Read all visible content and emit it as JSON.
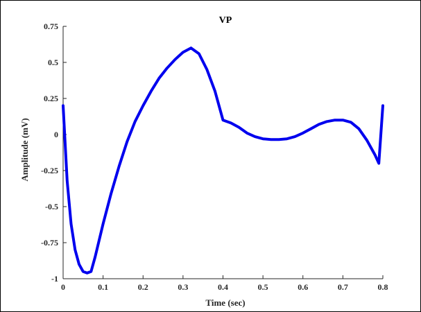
{
  "chart_data": {
    "type": "line",
    "title": "VP",
    "xlabel": "Time (sec)",
    "ylabel": "Amplitude (mV)",
    "xlim": [
      0,
      0.8
    ],
    "ylim": [
      -1,
      0.75
    ],
    "x_ticks": [
      0,
      0.1,
      0.2,
      0.3,
      0.4,
      0.5,
      0.6,
      0.7,
      0.8
    ],
    "x_tick_labels": [
      "0",
      "0.1",
      "0.2",
      "0.3",
      "0.4",
      "0.5",
      "0.6",
      "0.7",
      "0.8"
    ],
    "y_ticks": [
      -1,
      -0.75,
      -0.5,
      -0.25,
      0,
      0.25,
      0.5,
      0.75
    ],
    "y_tick_labels": [
      "-1",
      "-0.75",
      "-0.5",
      "-0.25",
      "0",
      "0.25",
      "0.5",
      "0.75"
    ],
    "grid": false,
    "series": [
      {
        "color": "#0000ee",
        "x": [
          0,
          0.01,
          0.02,
          0.03,
          0.04,
          0.05,
          0.06,
          0.07,
          0.08,
          0.1,
          0.12,
          0.14,
          0.16,
          0.18,
          0.2,
          0.22,
          0.24,
          0.26,
          0.28,
          0.3,
          0.32,
          0.34,
          0.36,
          0.38,
          0.4,
          0.42,
          0.44,
          0.46,
          0.48,
          0.5,
          0.52,
          0.54,
          0.56,
          0.58,
          0.6,
          0.62,
          0.64,
          0.66,
          0.68,
          0.7,
          0.72,
          0.74,
          0.76,
          0.78,
          0.79,
          0.8
        ],
        "y": [
          0.2,
          -0.32,
          -0.62,
          -0.8,
          -0.9,
          -0.95,
          -0.96,
          -0.95,
          -0.85,
          -0.62,
          -0.41,
          -0.22,
          -0.05,
          0.09,
          0.2,
          0.3,
          0.39,
          0.46,
          0.52,
          0.57,
          0.6,
          0.56,
          0.45,
          0.3,
          0.1,
          0.08,
          0.05,
          0.01,
          -0.015,
          -0.03,
          -0.035,
          -0.035,
          -0.03,
          -0.015,
          0.01,
          0.04,
          0.07,
          0.09,
          0.1,
          0.1,
          0.085,
          0.04,
          -0.04,
          -0.14,
          -0.2,
          0.2
        ]
      }
    ]
  }
}
